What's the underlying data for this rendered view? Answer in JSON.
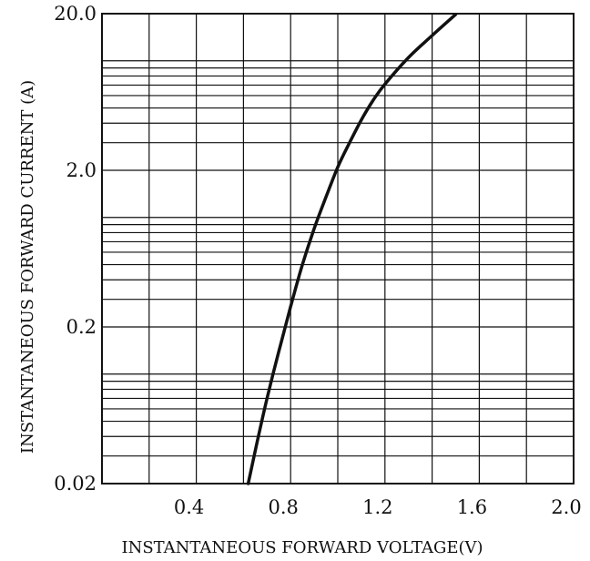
{
  "chart_data": {
    "type": "line",
    "title": "",
    "xlabel": "INSTANTANEOUS FORWARD VOLTAGE(V)",
    "ylabel": "INSTANTANEOUS FORWARD CURRENT (A)",
    "xlim": [
      0.0,
      2.0
    ],
    "ylim": [
      0.02,
      20.0
    ],
    "yscale": "log",
    "grid": true,
    "x_ticks": [
      0.4,
      0.8,
      1.2,
      1.6,
      2.0
    ],
    "x_tick_labels": [
      "0.4",
      "0.8",
      "1.2",
      "1.6",
      "2.0"
    ],
    "y_ticks": [
      0.02,
      0.2,
      2.0,
      20.0
    ],
    "y_tick_labels": [
      "0.02",
      "0.2",
      "2.0",
      "20.0"
    ],
    "series": [
      {
        "x": [
          0.62,
          0.66,
          0.7,
          0.75,
          0.8,
          0.85,
          0.9,
          0.95,
          1.0,
          1.05,
          1.1,
          1.15,
          1.2,
          1.3,
          1.4,
          1.5
        ],
        "y": [
          0.02,
          0.038,
          0.07,
          0.14,
          0.27,
          0.5,
          0.85,
          1.35,
          2.1,
          3.0,
          4.2,
          5.6,
          7.1,
          10.5,
          14.5,
          19.8
        ]
      }
    ],
    "line_color": "#111111",
    "grid_color": "#111111"
  }
}
